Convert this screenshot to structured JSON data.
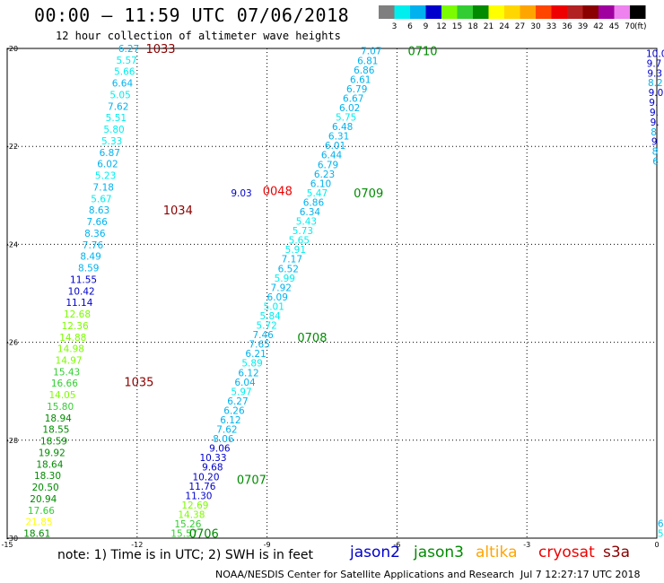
{
  "header": {
    "title": "00:00 – 11:59 UTC 07/06/2018",
    "subtitle": "12 hour collection of altimeter wave heights"
  },
  "legend": {
    "unit": "(ft)",
    "swatches": [
      {
        "label": "3",
        "color": "#7f7f7f"
      },
      {
        "label": "6",
        "color": "#00eeee"
      },
      {
        "label": "9",
        "color": "#00b2ee"
      },
      {
        "label": "12",
        "color": "#0000cd"
      },
      {
        "label": "15",
        "color": "#7cfc00"
      },
      {
        "label": "18",
        "color": "#32cd32"
      },
      {
        "label": "21",
        "color": "#008b00"
      },
      {
        "label": "24",
        "color": "#ffff00"
      },
      {
        "label": "27",
        "color": "#ffd700"
      },
      {
        "label": "30",
        "color": "#ffa500"
      },
      {
        "label": "33",
        "color": "#ff4500"
      },
      {
        "label": "36",
        "color": "#ee0000"
      },
      {
        "label": "39",
        "color": "#b22222"
      },
      {
        "label": "42",
        "color": "#8b0000"
      },
      {
        "label": "45",
        "color": "#a000a0"
      },
      {
        "label": "70",
        "color": "#ee82ee"
      },
      {
        "label": "",
        "color": "#000000"
      }
    ]
  },
  "axes": {
    "lon_ticks": [
      "-15",
      "-12",
      "-9",
      "-6",
      "-3",
      "0"
    ],
    "lat_ticks": [
      "-20",
      "-22",
      "-24",
      "-26",
      "-28",
      "-30"
    ]
  },
  "satellites": [
    {
      "name": "jason2",
      "color": "#0000cd"
    },
    {
      "name": "jason3",
      "color": "#008b00"
    },
    {
      "name": "altika",
      "color": "#ffa500"
    },
    {
      "name": "cryosat",
      "color": "#ee0000"
    },
    {
      "name": "s3a",
      "color": "#8b0000"
    }
  ],
  "passes": [
    {
      "time": "1033",
      "color": "#8b0000",
      "lon": -11.8,
      "lat": -20.0
    },
    {
      "time": "1034",
      "color": "#8b0000",
      "lon": -11.4,
      "lat": -23.3
    },
    {
      "time": "1035",
      "color": "#8b0000",
      "lon": -12.3,
      "lat": -26.8
    },
    {
      "time": "0048",
      "color": "#ee0000",
      "lon": -9.1,
      "lat": -22.9
    },
    {
      "time": "0706",
      "color": "#008b00",
      "lon": -10.8,
      "lat": -29.9
    },
    {
      "time": "0707",
      "color": "#008b00",
      "lon": -9.7,
      "lat": -28.8
    },
    {
      "time": "0708",
      "color": "#008b00",
      "lon": -8.3,
      "lat": -25.9
    },
    {
      "time": "0709",
      "color": "#008b00",
      "lon": -7.0,
      "lat": -22.95
    },
    {
      "time": "0710",
      "color": "#008b00",
      "lon": -5.75,
      "lat": -20.05
    }
  ],
  "tracks": [
    {
      "name": "s3a-left-track",
      "start": {
        "lon": -11.95,
        "lat": -20.0
      },
      "end": {
        "lon": -14.0,
        "lat": -29.9
      },
      "obs": [
        {
          "v": "6.27",
          "c": "#00b2ee"
        },
        {
          "v": "5.57",
          "c": "#00eeee"
        },
        {
          "v": "5.66",
          "c": "#00eeee"
        },
        {
          "v": "6.64",
          "c": "#00b2ee"
        },
        {
          "v": "5.05",
          "c": "#00eeee"
        },
        {
          "v": "7.62",
          "c": "#00b2ee"
        },
        {
          "v": "5.51",
          "c": "#00eeee"
        },
        {
          "v": "5.80",
          "c": "#00eeee"
        },
        {
          "v": "5.33",
          "c": "#00eeee"
        },
        {
          "v": "6.87",
          "c": "#00b2ee"
        },
        {
          "v": "6.02",
          "c": "#00b2ee"
        },
        {
          "v": "5.23",
          "c": "#00eeee"
        },
        {
          "v": "7.18",
          "c": "#00b2ee"
        },
        {
          "v": "5.67",
          "c": "#00eeee"
        },
        {
          "v": "8.63",
          "c": "#00b2ee"
        },
        {
          "v": "7.66",
          "c": "#00b2ee"
        },
        {
          "v": "8.36",
          "c": "#00b2ee"
        },
        {
          "v": "7.76",
          "c": "#00b2ee"
        },
        {
          "v": "8.49",
          "c": "#00b2ee"
        },
        {
          "v": "8.59",
          "c": "#00b2ee"
        },
        {
          "v": "11.55",
          "c": "#0000cd"
        },
        {
          "v": "10.42",
          "c": "#0000cd"
        },
        {
          "v": "11.14",
          "c": "#0000cd"
        },
        {
          "v": "12.68",
          "c": "#7cfc00"
        },
        {
          "v": "12.36",
          "c": "#7cfc00"
        },
        {
          "v": "14.88",
          "c": "#7cfc00"
        },
        {
          "v": "14.98",
          "c": "#7cfc00"
        },
        {
          "v": "14.97",
          "c": "#7cfc00"
        },
        {
          "v": "15.43",
          "c": "#32cd32"
        },
        {
          "v": "16.66",
          "c": "#32cd32"
        },
        {
          "v": "14.05",
          "c": "#7cfc00"
        },
        {
          "v": "15.80",
          "c": "#32cd32"
        },
        {
          "v": "18.94",
          "c": "#008b00"
        },
        {
          "v": "18.55",
          "c": "#008b00"
        },
        {
          "v": "18.59",
          "c": "#008b00"
        },
        {
          "v": "19.92",
          "c": "#008b00"
        },
        {
          "v": "18.64",
          "c": "#008b00"
        },
        {
          "v": "18.30",
          "c": "#008b00"
        },
        {
          "v": "20.50",
          "c": "#008b00"
        },
        {
          "v": "20.94",
          "c": "#008b00"
        },
        {
          "v": "17.66",
          "c": "#32cd32"
        },
        {
          "v": "21.85",
          "c": "#ffff00"
        },
        {
          "v": "18.61",
          "c": "#008b00"
        }
      ]
    },
    {
      "name": "jason3-diagonal-track",
      "start": {
        "lon": -6.35,
        "lat": -20.05
      },
      "end": {
        "lon": -10.6,
        "lat": -29.9
      },
      "obs": [
        {
          "v": "7.07",
          "c": "#00b2ee"
        },
        {
          "v": "6.81",
          "c": "#00b2ee"
        },
        {
          "v": "6.86",
          "c": "#00b2ee"
        },
        {
          "v": "6.61",
          "c": "#00b2ee"
        },
        {
          "v": "6.79",
          "c": "#00b2ee"
        },
        {
          "v": "6.67",
          "c": "#00b2ee"
        },
        {
          "v": "6.02",
          "c": "#00b2ee"
        },
        {
          "v": "5.75",
          "c": "#00eeee"
        },
        {
          "v": "6.48",
          "c": "#00b2ee"
        },
        {
          "v": "6.31",
          "c": "#00b2ee"
        },
        {
          "v": "6.01",
          "c": "#00b2ee"
        },
        {
          "v": "6.44",
          "c": "#00b2ee"
        },
        {
          "v": "6.79",
          "c": "#00b2ee"
        },
        {
          "v": "6.23",
          "c": "#00b2ee"
        },
        {
          "v": "6.10",
          "c": "#00b2ee"
        },
        {
          "v": "5.47",
          "c": "#00eeee"
        },
        {
          "v": "6.86",
          "c": "#00b2ee"
        },
        {
          "v": "6.34",
          "c": "#00b2ee"
        },
        {
          "v": "5.43",
          "c": "#00eeee"
        },
        {
          "v": "5.73",
          "c": "#00eeee"
        },
        {
          "v": "5.65",
          "c": "#00eeee"
        },
        {
          "v": "5.91",
          "c": "#00eeee"
        },
        {
          "v": "7.17",
          "c": "#00b2ee"
        },
        {
          "v": "6.52",
          "c": "#00b2ee"
        },
        {
          "v": "5.99",
          "c": "#00eeee"
        },
        {
          "v": "7.92",
          "c": "#00b2ee"
        },
        {
          "v": "6.09",
          "c": "#00b2ee"
        },
        {
          "v": "5.01",
          "c": "#00eeee"
        },
        {
          "v": "5.84",
          "c": "#00eeee"
        },
        {
          "v": "5.72",
          "c": "#00eeee"
        },
        {
          "v": "7.46",
          "c": "#00b2ee"
        },
        {
          "v": "7.65",
          "c": "#00b2ee"
        },
        {
          "v": "6.21",
          "c": "#00b2ee"
        },
        {
          "v": "5.89",
          "c": "#00eeee"
        },
        {
          "v": "6.12",
          "c": "#00b2ee"
        },
        {
          "v": "6.04",
          "c": "#00b2ee"
        },
        {
          "v": "5.97",
          "c": "#00eeee"
        },
        {
          "v": "6.27",
          "c": "#00b2ee"
        },
        {
          "v": "6.26",
          "c": "#00b2ee"
        },
        {
          "v": "6.12",
          "c": "#00b2ee"
        },
        {
          "v": "7.62",
          "c": "#00b2ee"
        },
        {
          "v": "8.06",
          "c": "#00b2ee"
        },
        {
          "v": "9.06",
          "c": "#0000cd"
        },
        {
          "v": "10.33",
          "c": "#0000cd"
        },
        {
          "v": "9.68",
          "c": "#0000cd"
        },
        {
          "v": "10.20",
          "c": "#0000cd"
        },
        {
          "v": "11.76",
          "c": "#0000cd"
        },
        {
          "v": "11.30",
          "c": "#0000cd"
        },
        {
          "v": "12.69",
          "c": "#7cfc00"
        },
        {
          "v": "14.38",
          "c": "#7cfc00"
        },
        {
          "v": "15.26",
          "c": "#32cd32"
        },
        {
          "v": "15.57",
          "c": "#32cd32"
        }
      ]
    }
  ],
  "single_obs": [
    {
      "v": "9.03",
      "c": "#0000cd",
      "lon": -9.35,
      "lat": -22.95
    }
  ],
  "edge_track": {
    "name": "right-edge-track",
    "start": {
      "lon": 0.0,
      "lat": -20.1
    },
    "end": {
      "lon": 0.15,
      "lat": -22.3
    },
    "obs": [
      {
        "v": "10.0",
        "c": "#0000cd"
      },
      {
        "v": "9.7",
        "c": "#0000cd"
      },
      {
        "v": "9.3",
        "c": "#0000cd"
      },
      {
        "v": "8.2",
        "c": "#00b2ee"
      },
      {
        "v": "9.0",
        "c": "#0000cd"
      },
      {
        "v": "9.",
        "c": "#0000cd"
      },
      {
        "v": "9.",
        "c": "#0000cd"
      },
      {
        "v": "9.",
        "c": "#0000cd"
      },
      {
        "v": "8",
        "c": "#00b2ee"
      },
      {
        "v": "9",
        "c": "#0000cd"
      },
      {
        "v": "8",
        "c": "#00b2ee"
      },
      {
        "v": "6",
        "c": "#00b2ee"
      }
    ]
  },
  "edge_bottom": [
    {
      "v": "6",
      "c": "#00b2ee",
      "lon": 0.1,
      "lat": -29.7
    },
    {
      "v": "5",
      "c": "#00eeee",
      "lon": 0.1,
      "lat": -29.9
    }
  ],
  "footer": {
    "note": "note: 1) Time is in UTC; 2) SWH is in feet",
    "credit": "NOAA/NESDIS Center for Satellite Applications and Research",
    "timestamp": "Jul  7 12:27:17 UTC 2018"
  }
}
